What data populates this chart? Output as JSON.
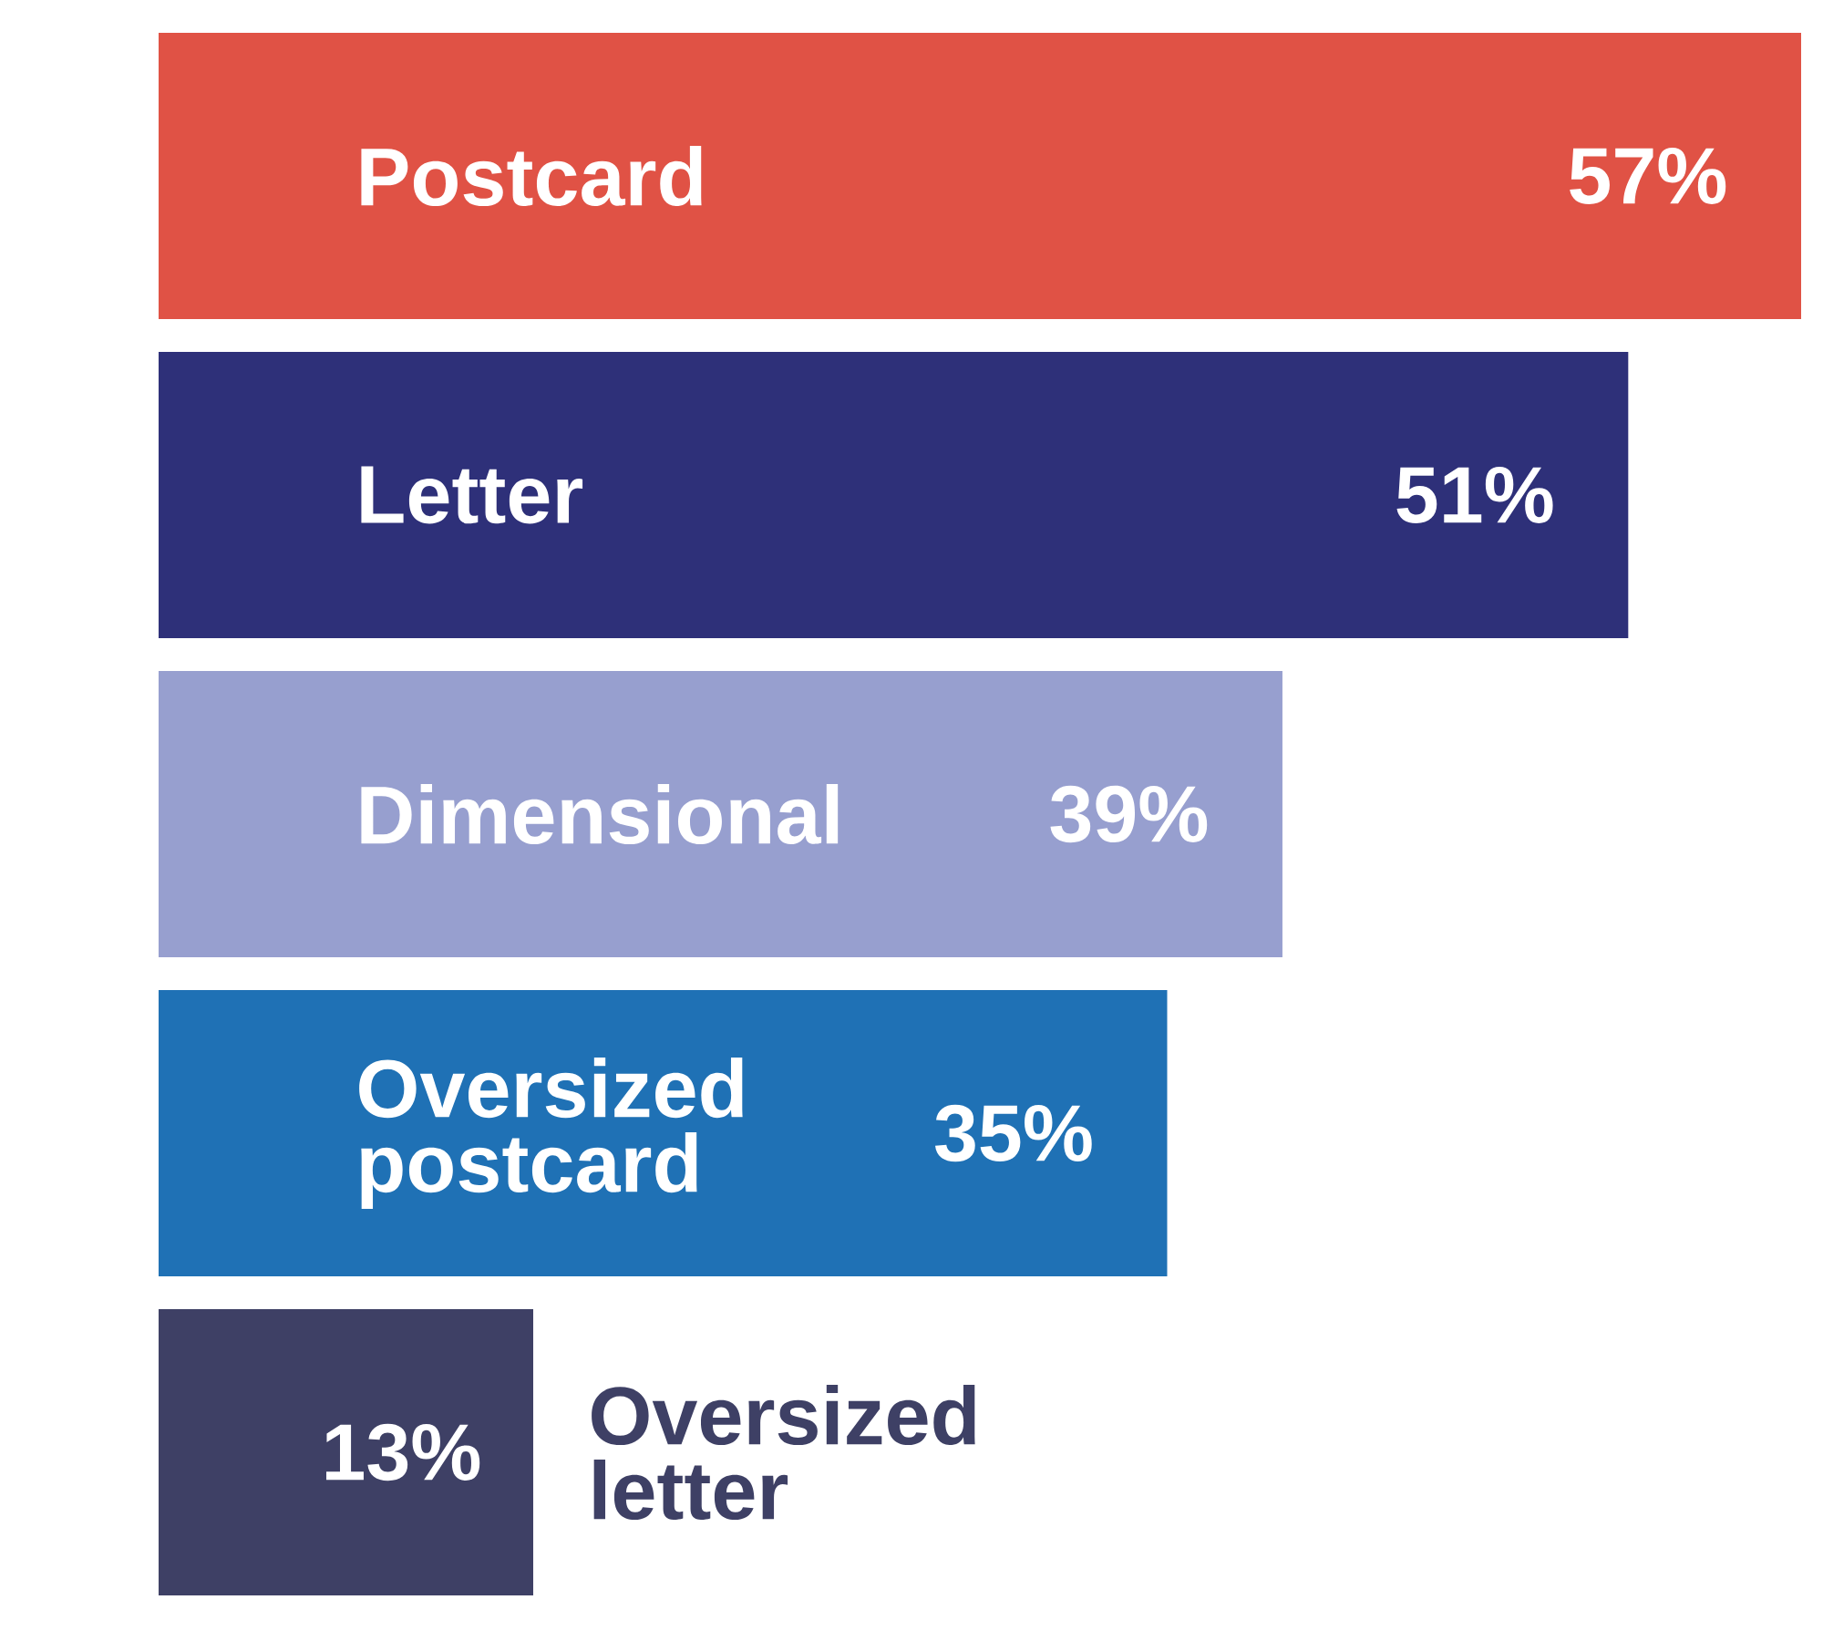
{
  "chart_data": {
    "type": "bar",
    "orientation": "horizontal",
    "categories": [
      "Postcard",
      "Letter",
      "Dimensional",
      "Oversized postcard",
      "Oversized letter"
    ],
    "values": [
      57,
      51,
      39,
      35,
      13
    ],
    "colors": [
      "#e05245",
      "#2e3079",
      "#979fcf",
      "#1f71b5",
      "#3e4065"
    ],
    "value_labels": [
      "57%",
      "51%",
      "39%",
      "35%",
      "13%"
    ]
  }
}
